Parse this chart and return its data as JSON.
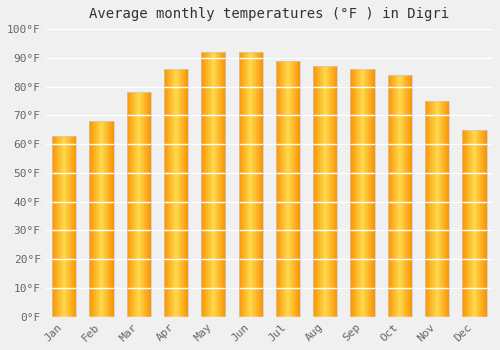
{
  "title": "Average monthly temperatures (°F ) in Digri",
  "months": [
    "Jan",
    "Feb",
    "Mar",
    "Apr",
    "May",
    "Jun",
    "Jul",
    "Aug",
    "Sep",
    "Oct",
    "Nov",
    "Dec"
  ],
  "values": [
    63,
    68,
    78,
    86,
    92,
    92,
    89,
    87,
    86,
    84,
    75,
    65
  ],
  "ylim": [
    0,
    100
  ],
  "yticks": [
    0,
    10,
    20,
    30,
    40,
    50,
    60,
    70,
    80,
    90,
    100
  ],
  "ytick_labels": [
    "0°F",
    "10°F",
    "20°F",
    "30°F",
    "40°F",
    "50°F",
    "60°F",
    "70°F",
    "80°F",
    "90°F",
    "100°F"
  ],
  "background_color": "#f0f0f0",
  "grid_color": "#ffffff",
  "title_fontsize": 10,
  "tick_fontsize": 8,
  "bar_width": 0.65,
  "bar_color_center": "#FFD54F",
  "bar_color_edge": "#FFA000",
  "bar_border_color": "#CCCCCC"
}
